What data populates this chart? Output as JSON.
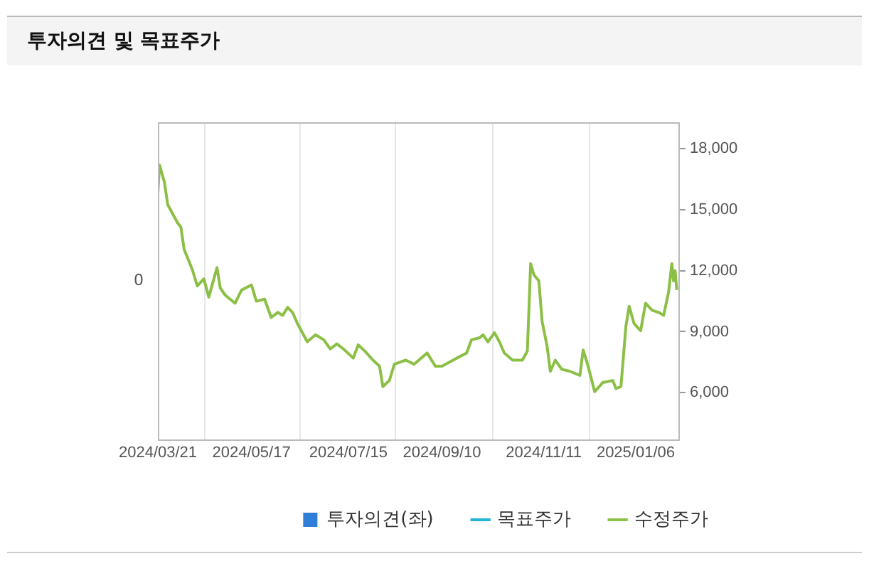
{
  "chart_data": {
    "type": "line",
    "title": "투자의견 및 목표주가",
    "xlim": [
      "2024-03-21",
      "2025-02-01"
    ],
    "xticks": [
      {
        "value": "2024-03-21",
        "label": "2024/03/21"
      },
      {
        "value": "2024-05-17",
        "label": "2024/05/17"
      },
      {
        "value": "2024-07-15",
        "label": "2024/07/15"
      },
      {
        "value": "2024-09-10",
        "label": "2024/09/10"
      },
      {
        "value": "2024-11-11",
        "label": "2024/11/11"
      },
      {
        "value": "2025-01-06",
        "label": "2025/01/06"
      }
    ],
    "annotations": [
      "0"
    ],
    "y2lim": [
      3700,
      19300
    ],
    "y2ticks": [
      {
        "value": 6000,
        "label": "6,000"
      },
      {
        "value": 9000,
        "label": "9,000"
      },
      {
        "value": 12000,
        "label": "12,000"
      },
      {
        "value": 15000,
        "label": "15,000"
      },
      {
        "value": 18000,
        "label": "18,000"
      }
    ],
    "grid": "x",
    "legend": "bottom",
    "marker": "none",
    "line_style": "solid",
    "series": [
      {
        "name": "투자의견(좌)",
        "type": "bar",
        "color": "#2f7ed8"
      },
      {
        "name": "목표주가",
        "axis": "y2",
        "color": "#1fb5d5"
      },
      {
        "name": "수정주가",
        "axis": "y2",
        "color": "#8cbf45",
        "x": [
          "2024-03-21",
          "2024-03-22",
          "2024-03-25",
          "2024-03-27",
          "2024-04-02",
          "2024-04-04",
          "2024-04-06",
          "2024-04-11",
          "2024-04-14",
          "2024-04-18",
          "2024-04-21",
          "2024-04-26",
          "2024-04-28",
          "2024-05-01",
          "2024-05-07",
          "2024-05-11",
          "2024-05-17",
          "2024-05-20",
          "2024-05-25",
          "2024-05-29",
          "2024-06-02",
          "2024-06-05",
          "2024-06-08",
          "2024-06-11",
          "2024-06-14",
          "2024-06-20",
          "2024-06-25",
          "2024-06-30",
          "2024-07-04",
          "2024-07-08",
          "2024-07-12",
          "2024-07-18",
          "2024-07-21",
          "2024-07-25",
          "2024-07-30",
          "2024-08-03",
          "2024-08-05",
          "2024-08-09",
          "2024-08-12",
          "2024-08-19",
          "2024-08-24",
          "2024-09-01",
          "2024-09-06",
          "2024-09-10",
          "2024-09-19",
          "2024-09-25",
          "2024-09-28",
          "2024-10-03",
          "2024-10-05",
          "2024-10-08",
          "2024-10-12",
          "2024-10-15",
          "2024-10-18",
          "2024-10-23",
          "2024-10-29",
          "2024-11-01",
          "2024-11-02",
          "2024-11-03",
          "2024-11-05",
          "2024-11-08",
          "2024-11-10",
          "2024-11-13",
          "2024-11-15",
          "2024-11-18",
          "2024-11-22",
          "2024-11-27",
          "2024-12-03",
          "2024-12-05",
          "2024-12-08",
          "2024-12-12",
          "2024-12-17",
          "2024-12-23",
          "2024-12-25",
          "2024-12-28",
          "2024-12-31",
          "2025-01-02",
          "2025-01-05",
          "2025-01-09",
          "2025-01-12",
          "2025-01-16",
          "2025-01-20",
          "2025-01-23",
          "2025-01-26",
          "2025-01-28",
          "2025-01-29",
          "2025-01-30",
          "2025-01-31"
        ],
        "values": [
          15800,
          17200,
          16350,
          15250,
          14350,
          14150,
          13050,
          12050,
          11250,
          11600,
          10700,
          12150,
          11150,
          10800,
          10400,
          11050,
          11300,
          10500,
          10600,
          9700,
          9950,
          9800,
          10200,
          9950,
          9400,
          8500,
          8850,
          8600,
          8150,
          8400,
          8150,
          7700,
          8350,
          8050,
          7600,
          7300,
          6300,
          6600,
          7400,
          7600,
          7400,
          7950,
          7300,
          7300,
          7700,
          7950,
          8600,
          8700,
          8850,
          8500,
          8950,
          8500,
          7950,
          7600,
          7600,
          8050,
          10150,
          12350,
          11800,
          11500,
          9500,
          8300,
          7050,
          7600,
          7150,
          7050,
          6850,
          8100,
          7300,
          6050,
          6500,
          6600,
          6200,
          6300,
          9250,
          10250,
          9400,
          9050,
          10400,
          10050,
          9950,
          9800,
          10950,
          12350,
          11500,
          12000,
          11050
        ]
      }
    ]
  }
}
